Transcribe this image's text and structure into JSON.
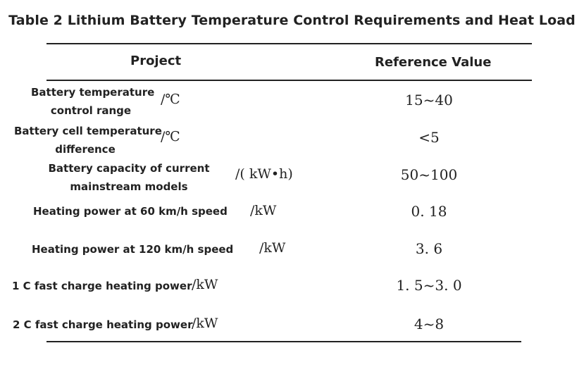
{
  "title": "Table 2 Lithium Battery Temperature Control Requirements and Heat Load",
  "headers": {
    "project": "Project",
    "reference_value": "Reference Value"
  },
  "rows": [
    {
      "label_line1": "Battery temperature",
      "label_line2": "control range",
      "unit": "/℃",
      "value": "15~40"
    },
    {
      "label_line1": "Battery cell temperature",
      "label_line2": "difference",
      "unit": "/℃",
      "value": "<5"
    },
    {
      "label_line1": "Battery capacity of current",
      "label_line2": "mainstream models",
      "unit": "/( kW•h)",
      "value": "50~100"
    },
    {
      "label_line1": "Heating power at 60 km/h speed",
      "unit": "/kW",
      "value": "0. 18"
    },
    {
      "label_line1": "Heating power at 120 km/h speed",
      "unit": "/kW",
      "value": "3. 6"
    },
    {
      "label_line1": "1 C fast charge heating power",
      "unit": "/kW",
      "value": "1. 5~3. 0"
    },
    {
      "label_line1": "2 C fast charge heating power",
      "unit": "/kW",
      "value": "4~8"
    }
  ]
}
